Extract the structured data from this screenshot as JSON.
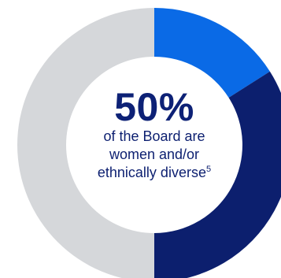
{
  "chart_data": {
    "type": "pie",
    "style": "donut",
    "slices": [
      {
        "label": "",
        "value": 16,
        "color": "#0a6ae6"
      },
      {
        "label": "",
        "value": 34,
        "color": "#0c1f6e"
      },
      {
        "label": "",
        "value": 50,
        "color": "#d5d7da"
      }
    ],
    "center": {
      "value": "50%",
      "caption_lines": [
        "of the Board are",
        "women and/or",
        "ethnically diverse"
      ],
      "footnote": "5"
    }
  }
}
